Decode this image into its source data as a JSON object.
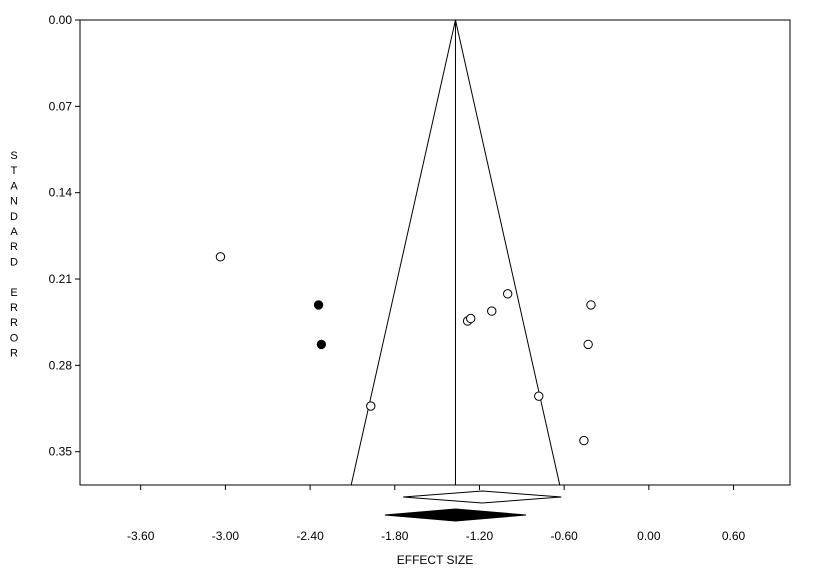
{
  "chart_data": {
    "type": "scatter",
    "xlabel": "EFFECT SIZE",
    "ylabel": "STANDARD ERROR",
    "xlim": [
      -4.03,
      1.0
    ],
    "ylim": [
      0,
      0.377
    ],
    "y_inverted": true,
    "xticks": [
      {
        "value": -3.6,
        "label": "-3.60"
      },
      {
        "value": -3.0,
        "label": "-3.00"
      },
      {
        "value": -2.4,
        "label": "-2.40"
      },
      {
        "value": -1.8,
        "label": "-1.80"
      },
      {
        "value": -1.2,
        "label": "-1.20"
      },
      {
        "value": -0.6,
        "label": "-0.60"
      },
      {
        "value": 0,
        "label": "0.00"
      },
      {
        "value": 0.6,
        "label": "0.60"
      }
    ],
    "yticks": [
      {
        "value": 0,
        "label": "0.00"
      },
      {
        "value": 0.07,
        "label": "0.07"
      },
      {
        "value": 0.14,
        "label": "0.14"
      },
      {
        "value": 0.21,
        "label": "0.21"
      },
      {
        "value": 0.28,
        "label": "0.28"
      },
      {
        "value": 0.35,
        "label": "0.35"
      }
    ],
    "series": [
      {
        "color": "#000000",
        "filled": false,
        "x": [
          -3.035,
          -1.97,
          -1.284,
          -1.262,
          -1.113,
          -1.0,
          -0.78,
          -0.41,
          -0.43,
          -0.46
        ],
        "values": [
          0.192,
          0.313,
          0.244,
          0.242,
          0.236,
          0.222,
          0.305,
          0.231,
          0.263,
          0.341
        ]
      },
      {
        "color": "#000000",
        "filled": true,
        "x": [
          -2.34,
          -2.32
        ],
        "values": [
          0.231,
          0.263
        ]
      }
    ],
    "funnel": {
      "center": -1.37,
      "z": 1.96
    },
    "diamonds": [
      {
        "center": -1.18,
        "lower": -1.74,
        "upper": -0.62,
        "filled": false
      },
      {
        "center": -1.37,
        "lower": -1.87,
        "upper": -0.87,
        "filled": true
      }
    ]
  }
}
